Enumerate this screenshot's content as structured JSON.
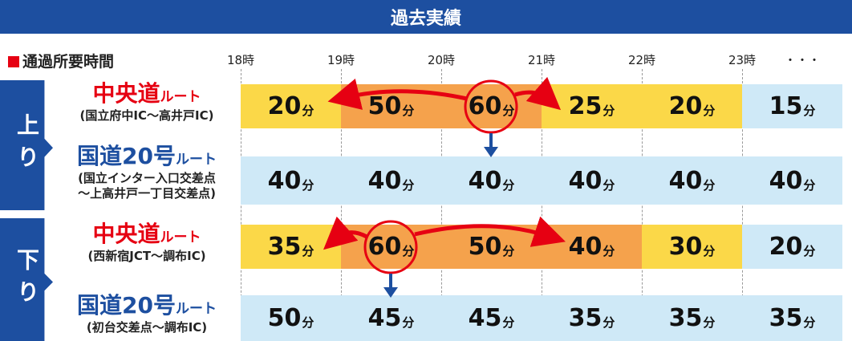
{
  "header": {
    "title": "過去実績"
  },
  "section": {
    "label": "通過所要時間"
  },
  "times": [
    "18時",
    "19時",
    "20時",
    "21時",
    "22時",
    "23時",
    "・・・"
  ],
  "unit": "分",
  "directions": [
    {
      "label": "上り",
      "routes": [
        {
          "name": "中央道",
          "suffix": "ルート",
          "name_color": "#e60012",
          "note": [
            "(国立府中IC～高井戸IC)"
          ],
          "values": [
            20,
            50,
            60,
            25,
            20,
            15
          ],
          "colors": [
            "#fbd848",
            "#f5a24c",
            "#f5a24c",
            "#fbd848",
            "#fbd848",
            "#cfe9f7"
          ]
        },
        {
          "name": "国道20号",
          "suffix": "ルート",
          "name_color": "#1d4fa0",
          "note": [
            "(国立インター入口交差点",
            "～上高井戸一丁目交差点)"
          ],
          "values": [
            40,
            40,
            40,
            40,
            40,
            40
          ],
          "colors": [
            "#cfe9f7",
            "#cfe9f7",
            "#cfe9f7",
            "#cfe9f7",
            "#cfe9f7",
            "#cfe9f7"
          ]
        }
      ]
    },
    {
      "label": "下り",
      "routes": [
        {
          "name": "中央道",
          "suffix": "ルート",
          "name_color": "#e60012",
          "note": [
            "(西新宿JCT～調布IC)"
          ],
          "values": [
            35,
            60,
            50,
            40,
            30,
            20
          ],
          "colors": [
            "#fbd848",
            "#f5a24c",
            "#f5a24c",
            "#f5a24c",
            "#fbd848",
            "#cfe9f7"
          ]
        },
        {
          "name": "国道20号",
          "suffix": "ルート",
          "name_color": "#1d4fa0",
          "note": [
            "(初台交差点～調布IC)"
          ],
          "values": [
            50,
            45,
            45,
            35,
            35,
            35
          ],
          "colors": [
            "#cfe9f7",
            "#cfe9f7",
            "#cfe9f7",
            "#cfe9f7",
            "#cfe9f7",
            "#cfe9f7"
          ]
        }
      ]
    }
  ]
}
